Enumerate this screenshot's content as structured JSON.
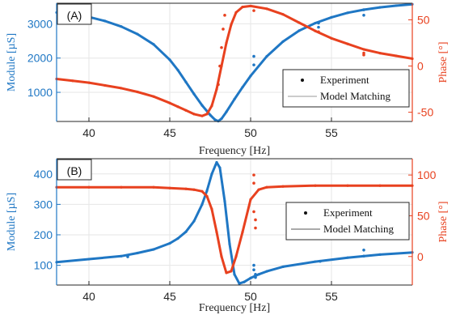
{
  "colors": {
    "module": "#1f77c4",
    "phase": "#e8411f",
    "model": "#9a9a9a",
    "axis": "#262626",
    "grid": "#e6e6e6"
  },
  "chart_data": [
    {
      "type": "line",
      "panel_label": "(A)",
      "xlabel": "Frequency [Hz]",
      "ylabel_left": "Module [µS]",
      "ylabel_right": "Phase [°]",
      "xlim": [
        38,
        60
      ],
      "ylim_left": [
        150,
        3600
      ],
      "ylim_right": [
        -60,
        68
      ],
      "xticks": [
        40,
        45,
        50,
        55
      ],
      "yticks_left": [
        1000,
        2000,
        3000
      ],
      "yticks_right": [
        -50,
        0,
        50
      ],
      "grid": true,
      "legend_position": "lower-right",
      "legend": [
        "Experiment",
        "Model Matching"
      ],
      "series": [
        {
          "axis": "left",
          "color": "module",
          "x": [
            38,
            39,
            40,
            41,
            42,
            43,
            44,
            45,
            45.5,
            46,
            46.5,
            47,
            47.5,
            47.8,
            48,
            48.2,
            48.5,
            49,
            49.5,
            50,
            51,
            52,
            53,
            54,
            55,
            56,
            57,
            58,
            59,
            60
          ],
          "y": [
            3330,
            3280,
            3200,
            3080,
            2920,
            2700,
            2400,
            1950,
            1650,
            1300,
            950,
            620,
            340,
            200,
            160,
            230,
            430,
            800,
            1150,
            1480,
            2050,
            2480,
            2800,
            3020,
            3190,
            3320,
            3410,
            3480,
            3530,
            3570
          ]
        },
        {
          "axis": "right",
          "color": "phase",
          "x": [
            38,
            39,
            40,
            41,
            42,
            43,
            44,
            45,
            45.5,
            46,
            46.5,
            47,
            47.3,
            47.6,
            47.9,
            48.2,
            48.5,
            48.8,
            49.1,
            49.5,
            50,
            51,
            52,
            53,
            54,
            55,
            56,
            57,
            58,
            59,
            60
          ],
          "y": [
            -14,
            -16,
            -18,
            -21,
            -24,
            -28,
            -33,
            -40,
            -44,
            -48,
            -52,
            -54,
            -52,
            -43,
            -25,
            0,
            25,
            45,
            58,
            64,
            65,
            62,
            56,
            47,
            38,
            30,
            24,
            18,
            14,
            11,
            8
          ]
        }
      ],
      "experiment_markers": [
        {
          "axis": "right",
          "x": [
            48.0,
            48.1,
            48.2,
            48.3,
            48.4
          ],
          "y": [
            -20,
            0,
            20,
            40,
            55
          ]
        },
        {
          "axis": "left",
          "x": [
            50.2,
            50.2,
            54.2,
            54.2,
            57.0,
            57.0
          ],
          "y": [
            2050,
            1800,
            3020,
            2900,
            3410,
            3250
          ]
        },
        {
          "axis": "right",
          "x": [
            50.2,
            54.2,
            57.0,
            57.0
          ],
          "y": [
            60,
            37,
            14,
            12
          ]
        }
      ]
    },
    {
      "type": "line",
      "panel_label": "(B)",
      "xlabel": "Frequency [Hz]",
      "ylabel_left": "Module [µS]",
      "ylabel_right": "Phase [°]",
      "xlim": [
        38,
        60
      ],
      "ylim_left": [
        35,
        450
      ],
      "ylim_right": [
        -35,
        120
      ],
      "xticks": [
        40,
        45,
        50,
        55
      ],
      "yticks_left": [
        100,
        200,
        300,
        400
      ],
      "yticks_right": [
        0,
        50,
        100
      ],
      "grid": true,
      "legend_position": "right",
      "legend": [
        "Experiment",
        "Model Matching"
      ],
      "series": [
        {
          "axis": "left",
          "color": "module",
          "x": [
            38,
            40,
            42,
            43,
            44,
            45,
            45.5,
            46,
            46.5,
            47,
            47.3,
            47.6,
            47.9,
            48.1,
            48.4,
            48.7,
            49,
            49.3,
            49.6,
            50,
            50.5,
            51,
            52,
            54,
            56,
            58,
            60
          ],
          "y": [
            110,
            120,
            130,
            140,
            152,
            172,
            188,
            210,
            245,
            300,
            345,
            400,
            438,
            420,
            310,
            170,
            70,
            40,
            45,
            58,
            70,
            80,
            95,
            112,
            125,
            135,
            142
          ]
        },
        {
          "axis": "right",
          "color": "phase",
          "x": [
            38,
            40,
            42,
            44,
            45,
            46,
            46.5,
            47,
            47.3,
            47.6,
            47.9,
            48.2,
            48.5,
            48.8,
            49.1,
            49.5,
            50,
            50.5,
            51,
            52,
            54,
            56,
            58,
            60
          ],
          "y": [
            85,
            85,
            85,
            85,
            84,
            83,
            82,
            80,
            74,
            58,
            30,
            0,
            -20,
            -18,
            0,
            30,
            70,
            82,
            85,
            86,
            87,
            87,
            87,
            87
          ]
        }
      ],
      "experiment_markers": [
        {
          "axis": "right",
          "x": [
            50.2,
            50.2,
            50.3,
            50.3,
            50.2
          ],
          "y": [
            90,
            55,
            45,
            35,
            100
          ]
        },
        {
          "axis": "left",
          "x": [
            50.2,
            50.2,
            50.3,
            50.3
          ],
          "y": [
            100,
            85,
            70,
            60
          ]
        },
        {
          "axis": "left",
          "x": [
            42.4,
            54.3,
            57.0,
            57.0
          ],
          "y": [
            128,
            113,
            150,
            130
          ]
        }
      ]
    }
  ]
}
